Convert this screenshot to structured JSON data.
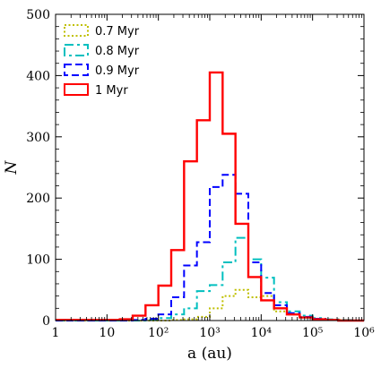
{
  "chart_data": {
    "type": "step-histogram",
    "xlabel": "a (au)",
    "ylabel": "N",
    "xscale": "log",
    "xlim": [
      1,
      1000000
    ],
    "ylim": [
      0,
      500
    ],
    "x_tick_labels": [
      "1",
      "10",
      "10²",
      "10³",
      "10⁴",
      "10⁵",
      "10⁶"
    ],
    "y_tick_labels": [
      "0",
      "100",
      "200",
      "300",
      "400",
      "500"
    ],
    "legend_position": "top-left",
    "bin_edges": [
      1,
      1.778,
      3.162,
      5.623,
      10,
      17.78,
      31.62,
      56.23,
      100,
      177.8,
      316.2,
      562.3,
      1000,
      1778,
      3162,
      5623,
      10000,
      17783,
      31623,
      56234,
      100000,
      177828,
      316228,
      562341,
      1000000
    ],
    "series": [
      {
        "name": "0.7 Myr",
        "color": "#bfbf00",
        "style": "dotted",
        "values": [
          0,
          0,
          0,
          0,
          0,
          0,
          0,
          0,
          0,
          1,
          2,
          6,
          20,
          40,
          50,
          38,
          40,
          15,
          10,
          5,
          3,
          1,
          1,
          0
        ]
      },
      {
        "name": "0.8 Myr",
        "color": "#00bfbf",
        "style": "dashdot",
        "values": [
          0,
          0,
          0,
          0,
          0,
          0,
          0,
          1,
          4,
          10,
          20,
          48,
          58,
          95,
          135,
          100,
          70,
          30,
          15,
          8,
          4,
          2,
          1,
          0
        ]
      },
      {
        "name": "0.9 Myr",
        "color": "#0000ff",
        "style": "dashed",
        "values": [
          0,
          0,
          0,
          0,
          0,
          0,
          1,
          3,
          10,
          38,
          90,
          128,
          218,
          238,
          207,
          95,
          45,
          25,
          12,
          6,
          3,
          1,
          0,
          0
        ]
      },
      {
        "name": "1 Myr",
        "color": "#ff0000",
        "style": "solid",
        "values": [
          1,
          1,
          1,
          1,
          1,
          2,
          8,
          25,
          57,
          115,
          260,
          327,
          405,
          305,
          158,
          71,
          33,
          20,
          10,
          5,
          2,
          1,
          0,
          0
        ]
      }
    ]
  }
}
